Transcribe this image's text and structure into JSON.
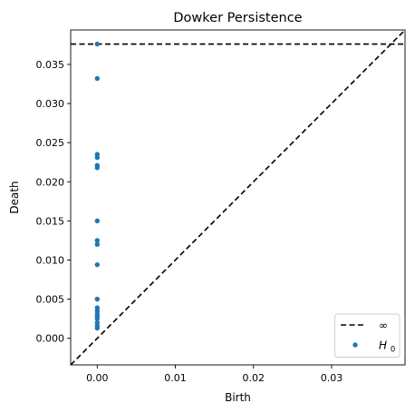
{
  "chart_data": {
    "type": "scatter",
    "title": "Dowker Persistence",
    "xlabel": "Birth",
    "ylabel": "Death",
    "xlim": [
      -0.0034,
      0.0394
    ],
    "ylim": [
      -0.0034,
      0.0394
    ],
    "xticks": [
      0.0,
      0.01,
      0.02,
      0.03
    ],
    "xtick_labels": [
      "0.00",
      "0.01",
      "0.02",
      "0.03"
    ],
    "yticks": [
      0.0,
      0.005,
      0.01,
      0.015,
      0.02,
      0.025,
      0.03,
      0.035
    ],
    "ytick_labels": [
      "0.000",
      "0.005",
      "0.010",
      "0.015",
      "0.020",
      "0.025",
      "0.030",
      "0.035"
    ],
    "infinity_line": {
      "label": "∞",
      "y": 0.0376
    },
    "diagonal": true,
    "grid": false,
    "legend_position": "bottom-right",
    "series": [
      {
        "name": "H0",
        "color": "#1f77b4",
        "points": [
          [
            0.0,
            0.0376
          ],
          [
            0.0,
            0.0332
          ],
          [
            0.0,
            0.0235
          ],
          [
            0.0,
            0.0231
          ],
          [
            0.0,
            0.0221
          ],
          [
            0.0,
            0.0218
          ],
          [
            0.0,
            0.015
          ],
          [
            0.0,
            0.0125
          ],
          [
            0.0,
            0.012
          ],
          [
            0.0,
            0.0094
          ],
          [
            0.0,
            0.005
          ],
          [
            0.0,
            0.0039
          ],
          [
            0.0,
            0.0035
          ],
          [
            0.0,
            0.0031
          ],
          [
            0.0,
            0.0028
          ],
          [
            0.0,
            0.0025
          ],
          [
            0.0,
            0.002
          ],
          [
            0.0,
            0.0016
          ],
          [
            0.0,
            0.0013
          ]
        ]
      }
    ]
  },
  "legend": {
    "infinity_label": "∞",
    "h0_label_main": "H",
    "h0_label_sub": "0"
  }
}
